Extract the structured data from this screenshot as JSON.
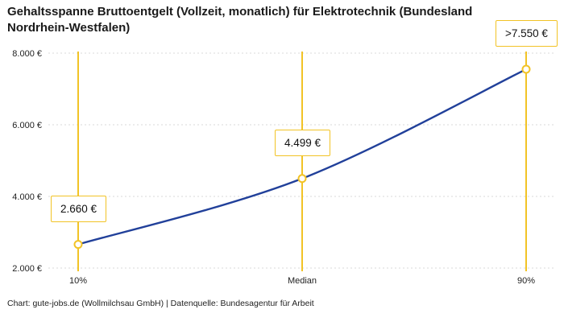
{
  "chart_data": {
    "type": "line",
    "title": "Gehaltsspanne Bruttoentgelt (Vollzeit, monatlich) für Elektrotechnik (Bundesland Nordrhein-Westfalen)",
    "caption": "Chart: gute-jobs.de (Wollmilchsau GmbH) | Datenquelle: Bundesagentur für Arbeit",
    "categories": [
      "10%",
      "Median",
      "90%"
    ],
    "values": [
      2660,
      4499,
      7550
    ],
    "point_labels": [
      "2.660 €",
      "4.499 €",
      ">7.550 €"
    ],
    "xlabel": "",
    "ylabel": "",
    "ylim": [
      2000,
      8000
    ],
    "grid": true,
    "legend": "none",
    "y_ticks": [
      {
        "value": 8000,
        "label": "8.000 €"
      },
      {
        "value": 6000,
        "label": "6.000 €"
      },
      {
        "value": 4000,
        "label": "4.000 €"
      },
      {
        "value": 2000,
        "label": "2.000 €"
      }
    ],
    "colors": {
      "line": "#21409a",
      "accent": "#f2c326",
      "grid": "#d9d9d9",
      "text": "#1a1a1a"
    }
  }
}
